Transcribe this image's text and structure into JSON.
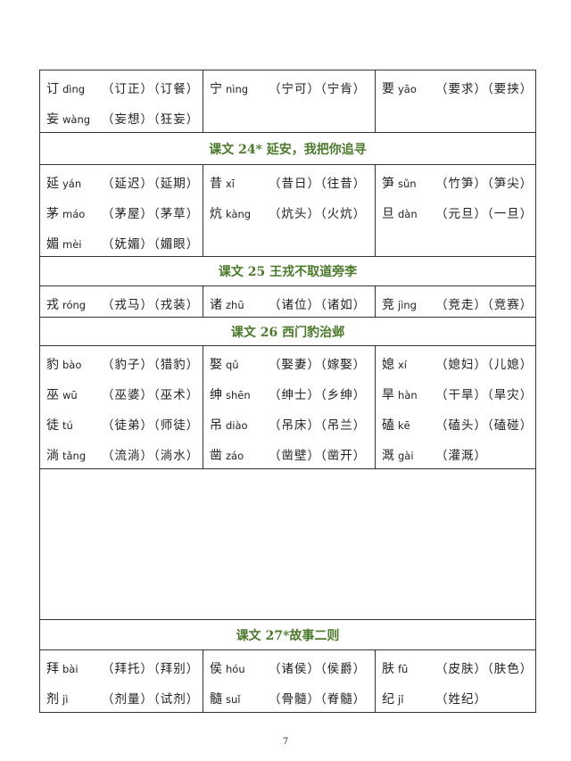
{
  "rows": [
    {
      "type": "words",
      "height": 69,
      "cells": [
        [
          {
            "char": "订",
            "pinyin": "dìng",
            "words": "（订正）（订餐）"
          },
          {
            "char": "妄",
            "pinyin": "wàng",
            "words": "（妄想）（狂妄）"
          }
        ],
        [
          {
            "char": "宁",
            "pinyin": "nìng",
            "words": "（宁可）（宁肯）"
          }
        ],
        [
          {
            "char": "要",
            "pinyin": "yāo",
            "words": "（要求）（要挟）"
          }
        ]
      ]
    },
    {
      "type": "header",
      "height": 36,
      "title": "课文 24* 延安，我把你追寻"
    },
    {
      "type": "words",
      "height": 103,
      "cells": [
        [
          {
            "char": "延",
            "pinyin": "yán",
            "words": "（延迟）（延期）"
          },
          {
            "char": "茅",
            "pinyin": "máo",
            "words": "（茅屋）（茅草）"
          },
          {
            "char": "媚",
            "pinyin": "mèi",
            "words": "（妩媚）（媚眼）"
          }
        ],
        [
          {
            "char": "昔",
            "pinyin": "xī",
            "words": "（昔日）（往昔）"
          },
          {
            "char": "炕",
            "pinyin": "kàng",
            "words": "（炕头）（火炕）"
          }
        ],
        [
          {
            "char": "笋",
            "pinyin": "sǔn",
            "words": "（竹笋）（笋尖）"
          },
          {
            "char": "旦",
            "pinyin": "dàn",
            "words": "（元旦）（一旦）"
          }
        ]
      ]
    },
    {
      "type": "header",
      "height": 33,
      "title": "课文 25  王戎不取道旁李"
    },
    {
      "type": "words",
      "height": 35,
      "cells": [
        [
          {
            "char": "戎",
            "pinyin": "róng",
            "words": "（戎马）（戎装）"
          }
        ],
        [
          {
            "char": "诸",
            "pinyin": "zhū",
            "words": "（诸位）（诸如）"
          }
        ],
        [
          {
            "char": "竞",
            "pinyin": "jìng",
            "words": "（竞走）（竞赛）"
          }
        ]
      ]
    },
    {
      "type": "header",
      "height": 32,
      "title": "课文 26  西门豹治邺"
    },
    {
      "type": "words",
      "height": 138,
      "cells": [
        [
          {
            "char": "豹",
            "pinyin": "bào",
            "words": "（豹子）（猎豹）"
          },
          {
            "char": "巫",
            "pinyin": "wū",
            "words": "（巫婆）（巫术）"
          },
          {
            "char": "徒",
            "pinyin": "tú",
            "words": "（徒弟）（师徒）"
          },
          {
            "char": "淌",
            "pinyin": "tǎng",
            "words": "（流淌）（淌水）"
          }
        ],
        [
          {
            "char": "娶",
            "pinyin": "qǔ",
            "words": "（娶妻）（嫁娶）"
          },
          {
            "char": "绅",
            "pinyin": "shēn",
            "words": "（绅士）（乡绅）"
          },
          {
            "char": "吊",
            "pinyin": "diào",
            "words": "（吊床）（吊兰）"
          },
          {
            "char": "凿",
            "pinyin": "záo",
            "words": "（凿壁）（凿开）"
          }
        ],
        [
          {
            "char": "媳",
            "pinyin": "xí",
            "words": "（媳妇）（儿媳）"
          },
          {
            "char": "旱",
            "pinyin": "hàn",
            "words": "（干旱）（旱灾）"
          },
          {
            "char": "磕",
            "pinyin": "kē",
            "words": "（磕头）（磕碰）"
          },
          {
            "char": "溉",
            "pinyin": "gài",
            "words": "（灌溉）"
          }
        ]
      ]
    },
    {
      "type": "empty",
      "height": 169
    },
    {
      "type": "header",
      "height": 34,
      "title": "课文 27*故事二则"
    },
    {
      "type": "words",
      "height": 70,
      "cells": [
        [
          {
            "char": "拜",
            "pinyin": "bài",
            "words": "（拜托）（拜别）"
          },
          {
            "char": "剂",
            "pinyin": "jì",
            "words": "（剂量）（试剂）"
          }
        ],
        [
          {
            "char": "侯",
            "pinyin": "hóu",
            "words": "（诸侯）（侯爵）"
          },
          {
            "char": "髓",
            "pinyin": "suǐ",
            "words": "（骨髓）（脊髓）"
          }
        ],
        [
          {
            "char": "肤",
            "pinyin": "fū",
            "words": "（皮肤）（肤色）"
          },
          {
            "char": "纪",
            "pinyin": "jǐ",
            "words": "（姓纪）"
          }
        ]
      ]
    }
  ],
  "page_number": "7",
  "colors": {
    "header": "#4a7a2a",
    "border": "#333333"
  }
}
